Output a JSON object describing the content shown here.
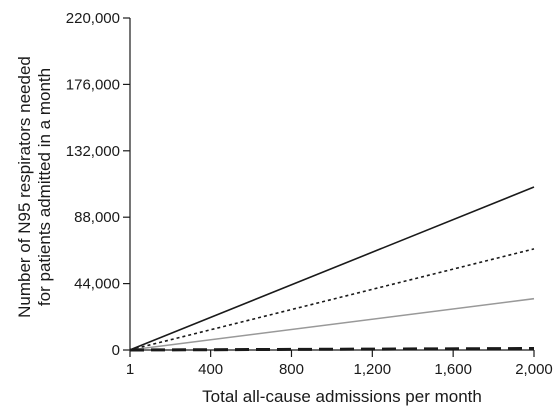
{
  "chart_data": {
    "type": "line",
    "xlabel": "Total all-cause admissions per month",
    "ylabel_lines": [
      "Number of N95 respirators needed",
      "for patients admitted in a month"
    ],
    "xlim": [
      1,
      2000
    ],
    "ylim": [
      0,
      220000
    ],
    "x_ticks": [
      {
        "value": 1,
        "label": "1"
      },
      {
        "value": 400,
        "label": "400"
      },
      {
        "value": 800,
        "label": "800"
      },
      {
        "value": 1200,
        "label": "1,200"
      },
      {
        "value": 1600,
        "label": "1,600"
      },
      {
        "value": 2000,
        "label": "2,000"
      }
    ],
    "y_ticks": [
      {
        "value": 0,
        "label": "0"
      },
      {
        "value": 44000,
        "label": "44,000"
      },
      {
        "value": 88000,
        "label": "88,000"
      },
      {
        "value": 132000,
        "label": "132,000"
      },
      {
        "value": 176000,
        "label": "176,000"
      },
      {
        "value": 220000,
        "label": "220,000"
      }
    ],
    "series": [
      {
        "style": "solid",
        "color": "#1a1a1a",
        "x": [
          1,
          2000
        ],
        "y": [
          54,
          108000
        ]
      },
      {
        "style": "dotted",
        "color": "#1a1a1a",
        "x": [
          1,
          2000
        ],
        "y": [
          34,
          67000
        ]
      },
      {
        "style": "solid",
        "color": "#999999",
        "x": [
          1,
          2000
        ],
        "y": [
          17,
          34000
        ]
      },
      {
        "style": "dashed",
        "color": "#1a1a1a",
        "x": [
          1,
          2000
        ],
        "y": [
          0,
          1000
        ]
      }
    ],
    "grid": false,
    "legend": "none"
  }
}
